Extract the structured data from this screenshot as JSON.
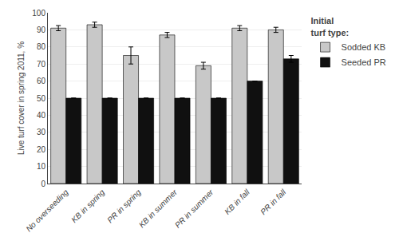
{
  "chart_data": {
    "type": "bar",
    "categories": [
      "No overseeding",
      "KB in spring",
      "PR in spring",
      "KB in summer",
      "PR in summer",
      "KB in fall",
      "PR in fall"
    ],
    "series": [
      {
        "name": "Sodded KB",
        "color": "#c8c8c8",
        "values": [
          91,
          93,
          75,
          87,
          69,
          91,
          90
        ],
        "errors": [
          1.5,
          1.5,
          5,
          1.5,
          2,
          1.5,
          1.5
        ]
      },
      {
        "name": "Seeded PR",
        "color": "#101010",
        "values": [
          50,
          50,
          50,
          50,
          50,
          60,
          73
        ],
        "errors": [
          0,
          0,
          0,
          0,
          0,
          0,
          2
        ]
      }
    ],
    "ylabel": "Live turf cover in spring 2011, %",
    "ylim": [
      0,
      100
    ],
    "yticks": [
      0,
      10,
      20,
      30,
      40,
      50,
      60,
      70,
      80,
      90,
      100
    ],
    "grid": true,
    "legend": "right",
    "legend_title": "Initial\nturf type:"
  }
}
